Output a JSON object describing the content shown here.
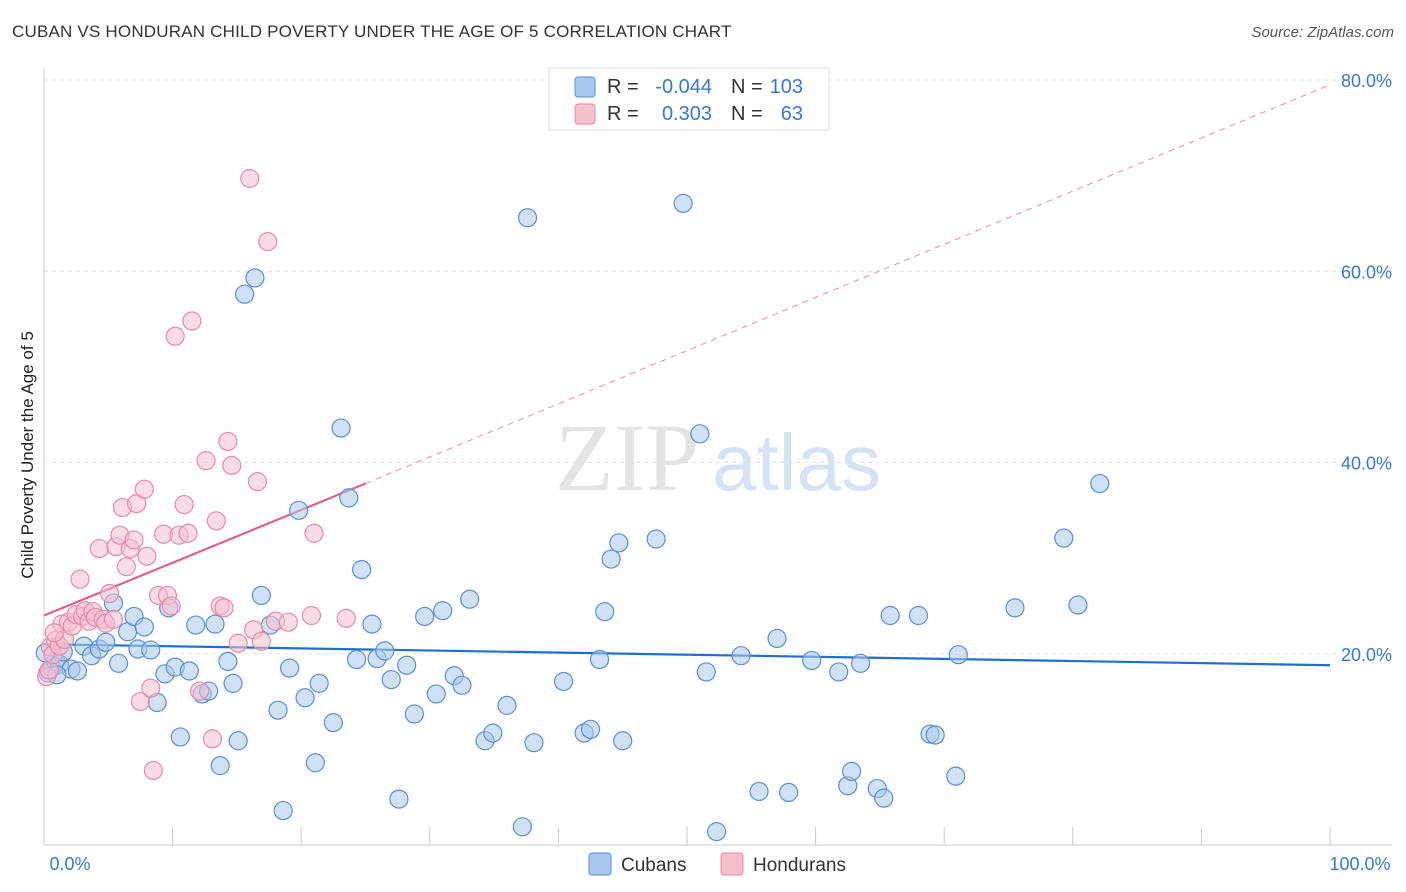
{
  "title": "CUBAN VS HONDURAN CHILD POVERTY UNDER THE AGE OF 5 CORRELATION CHART",
  "source": "Source: ZipAtlas.com",
  "watermark": {
    "zip": "ZIP",
    "atlas": "atlas"
  },
  "colors": {
    "cubans_fill": "#a9c8ef",
    "cubans_stroke": "#5b8fd6",
    "cubans_line": "#1f6fd1",
    "hondurans_fill": "#f6bfd0",
    "hondurans_stroke": "#e98aa8",
    "hondurans_line": "#e0608c",
    "grid": "#e3e3e3",
    "tick_text": "#3b78c8"
  },
  "legend": {
    "rows": [
      {
        "r_label": "R =",
        "r_value": "-0.044",
        "n_label": "N =",
        "n_value": "103"
      },
      {
        "r_label": "R =",
        "r_value": "0.303",
        "n_label": "N =",
        "n_value": "63"
      }
    ]
  },
  "bottom_legend": {
    "cubans": "Cubans",
    "hondurans": "Hondurans"
  },
  "chart_data": {
    "type": "scatter",
    "title": "CUBAN VS HONDURAN CHILD POVERTY UNDER THE AGE OF 5 CORRELATION CHART",
    "xlabel": "",
    "ylabel": "Child Poverty Under the Age of 5",
    "xlim": [
      0,
      100
    ],
    "ylim": [
      0,
      80
    ],
    "x_tick_labels": [
      "0.0%",
      "100.0%"
    ],
    "y_ticks": [
      20,
      40,
      60,
      80
    ],
    "y_tick_labels": [
      "20.0%",
      "40.0%",
      "60.0%",
      "80.0%"
    ],
    "grid": true,
    "legend_position": "top-center",
    "series": [
      {
        "name": "Cubans",
        "r": -0.044,
        "n": 103,
        "trend": {
          "x": [
            0,
            100
          ],
          "y": [
            21.0,
            18.8
          ]
        },
        "points": [
          [
            0.3,
            18
          ],
          [
            0.6,
            18.5
          ],
          [
            0.9,
            19.2
          ],
          [
            1.2,
            18.9
          ],
          [
            1.5,
            20.2
          ],
          [
            2.1,
            18.4
          ],
          [
            2.6,
            18.2
          ],
          [
            3.1,
            20.8
          ],
          [
            3.7,
            19.8
          ],
          [
            4.3,
            20.5
          ],
          [
            4.8,
            21.2
          ],
          [
            5.4,
            25.3
          ],
          [
            5.8,
            19
          ],
          [
            6.5,
            22.3
          ],
          [
            7.0,
            23.9
          ],
          [
            7.3,
            20.5
          ],
          [
            7.8,
            22.8
          ],
          [
            8.3,
            20.4
          ],
          [
            8.8,
            14.9
          ],
          [
            9.4,
            17.9
          ],
          [
            9.7,
            24.8
          ],
          [
            10.2,
            18.6
          ],
          [
            10.6,
            11.3
          ],
          [
            11.3,
            18.2
          ],
          [
            11.8,
            23
          ],
          [
            12.3,
            15.8
          ],
          [
            12.8,
            16.1
          ],
          [
            13.3,
            23.1
          ],
          [
            13.7,
            8.3
          ],
          [
            14.3,
            19.2
          ],
          [
            14.7,
            16.9
          ],
          [
            15.6,
            57.6
          ],
          [
            16.4,
            59.3
          ],
          [
            16.9,
            26.1
          ],
          [
            15.1,
            10.9
          ],
          [
            17.6,
            23
          ],
          [
            18.2,
            14.1
          ],
          [
            18.6,
            3.6
          ],
          [
            19.1,
            18.5
          ],
          [
            19.8,
            35
          ],
          [
            20.3,
            15.4
          ],
          [
            21.1,
            8.6
          ],
          [
            21.4,
            16.9
          ],
          [
            22.5,
            12.8
          ],
          [
            23.1,
            43.6
          ],
          [
            23.7,
            36.3
          ],
          [
            24.3,
            19.4
          ],
          [
            24.7,
            28.8
          ],
          [
            25.5,
            23.1
          ],
          [
            25.9,
            19.5
          ],
          [
            26.5,
            20.3
          ],
          [
            27.0,
            17.3
          ],
          [
            27.6,
            4.8
          ],
          [
            28.2,
            18.8
          ],
          [
            28.8,
            13.7
          ],
          [
            29.6,
            23.9
          ],
          [
            30.5,
            15.8
          ],
          [
            31.0,
            24.5
          ],
          [
            31.9,
            17.7
          ],
          [
            32.5,
            16.7
          ],
          [
            33.1,
            25.7
          ],
          [
            34.3,
            10.9
          ],
          [
            34.9,
            11.7
          ],
          [
            36.0,
            14.6
          ],
          [
            37.2,
            1.9
          ],
          [
            37.6,
            65.6
          ],
          [
            38.1,
            10.7
          ],
          [
            40.4,
            17.1
          ],
          [
            42.0,
            11.7
          ],
          [
            42.5,
            12.1
          ],
          [
            43.2,
            19.4
          ],
          [
            43.6,
            24.4
          ],
          [
            44.1,
            29.9
          ],
          [
            44.7,
            31.6
          ],
          [
            45.0,
            10.9
          ],
          [
            47.6,
            32
          ],
          [
            49.7,
            67.1
          ],
          [
            51.0,
            43
          ],
          [
            51.5,
            18.1
          ],
          [
            52.3,
            1.4
          ],
          [
            54.2,
            19.8
          ],
          [
            55.6,
            5.6
          ],
          [
            57.0,
            21.6
          ],
          [
            57.9,
            5.5
          ],
          [
            59.7,
            19.3
          ],
          [
            61.8,
            18.1
          ],
          [
            62.5,
            6.2
          ],
          [
            62.8,
            7.7
          ],
          [
            63.5,
            19
          ],
          [
            64.8,
            5.9
          ],
          [
            65.3,
            4.9
          ],
          [
            65.8,
            24
          ],
          [
            68.0,
            24
          ],
          [
            68.9,
            11.6
          ],
          [
            69.3,
            11.5
          ],
          [
            70.9,
            7.2
          ],
          [
            71.1,
            19.9
          ],
          [
            75.5,
            24.8
          ],
          [
            79.3,
            32.1
          ],
          [
            80.4,
            25.1
          ],
          [
            82.1,
            37.8
          ],
          [
            0.1,
            20.1
          ],
          [
            1.0,
            17.8
          ]
        ]
      },
      {
        "name": "Hondurans",
        "r": 0.303,
        "n": 63,
        "trend": {
          "x": [
            0,
            25
          ],
          "y": [
            24.0,
            37.8
          ]
        },
        "trend_extension": {
          "x": [
            25,
            100
          ],
          "y": [
            37.8,
            79.5
          ]
        },
        "points": [
          [
            0.2,
            17.6
          ],
          [
            0.4,
            18.3
          ],
          [
            0.5,
            20.7
          ],
          [
            0.7,
            19.9
          ],
          [
            0.9,
            21.4
          ],
          [
            1.2,
            20.8
          ],
          [
            1.4,
            23.1
          ],
          [
            1.6,
            21.5
          ],
          [
            1.9,
            23.3
          ],
          [
            2.2,
            22.9
          ],
          [
            2.5,
            24.1
          ],
          [
            2.8,
            27.8
          ],
          [
            3.0,
            23.9
          ],
          [
            3.2,
            24.5
          ],
          [
            3.5,
            23.4
          ],
          [
            3.8,
            24.4
          ],
          [
            4.0,
            23.8
          ],
          [
            4.3,
            31
          ],
          [
            4.6,
            23.6
          ],
          [
            4.8,
            23.2
          ],
          [
            5.1,
            26.3
          ],
          [
            5.4,
            23.6
          ],
          [
            5.6,
            31.2
          ],
          [
            5.9,
            32.4
          ],
          [
            6.1,
            35.3
          ],
          [
            6.4,
            29.1
          ],
          [
            6.7,
            31
          ],
          [
            7.0,
            31.9
          ],
          [
            7.2,
            35.7
          ],
          [
            7.5,
            15
          ],
          [
            7.8,
            37.2
          ],
          [
            8.0,
            30.2
          ],
          [
            8.3,
            16.4
          ],
          [
            8.5,
            7.8
          ],
          [
            8.9,
            26.1
          ],
          [
            9.3,
            32.5
          ],
          [
            9.6,
            26.1
          ],
          [
            9.9,
            25
          ],
          [
            10.2,
            53.2
          ],
          [
            10.5,
            32.4
          ],
          [
            10.9,
            35.6
          ],
          [
            11.2,
            32.6
          ],
          [
            11.5,
            54.8
          ],
          [
            12.1,
            16.1
          ],
          [
            12.6,
            40.2
          ],
          [
            13.1,
            11.1
          ],
          [
            13.4,
            33.9
          ],
          [
            13.7,
            25
          ],
          [
            14.0,
            24.8
          ],
          [
            14.3,
            42.2
          ],
          [
            14.6,
            39.7
          ],
          [
            15.1,
            21.1
          ],
          [
            16.0,
            69.7
          ],
          [
            16.3,
            22.5
          ],
          [
            16.6,
            38
          ],
          [
            16.9,
            21.3
          ],
          [
            17.4,
            63.1
          ],
          [
            18.0,
            23.4
          ],
          [
            19.0,
            23.3
          ],
          [
            20.8,
            24
          ],
          [
            21.0,
            32.6
          ],
          [
            23.5,
            23.7
          ],
          [
            0.8,
            22.2
          ]
        ]
      }
    ]
  }
}
